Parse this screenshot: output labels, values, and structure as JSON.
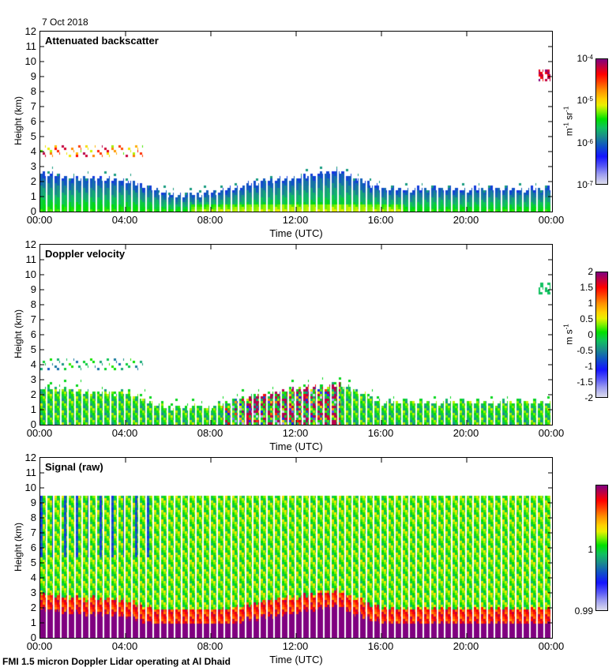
{
  "date_label": "7 Oct 2018",
  "footer": "FMI 1.5 micron Doppler Lidar operating at Al Dhaid",
  "colors": {
    "frame": "#000000",
    "background": "#ffffff"
  },
  "chart_data": [
    {
      "type": "heatmap",
      "title": "Attenuated backscatter",
      "xlabel": "Time (UTC)",
      "ylabel": "Height (km)",
      "xticks": [
        "00:00",
        "04:00",
        "08:00",
        "12:00",
        "16:00",
        "20:00",
        "00:00"
      ],
      "yticks": [
        "0",
        "1",
        "2",
        "3",
        "4",
        "5",
        "6",
        "7",
        "8",
        "9",
        "10",
        "11",
        "12"
      ],
      "ylim": [
        0,
        12
      ],
      "xlim_hours": [
        0,
        24
      ],
      "colorbar": {
        "label_base": "m",
        "label_exp1": "-1",
        "label_mid": " sr",
        "label_exp2": "-1",
        "ticks": [
          {
            "base": "10",
            "exp": "-4"
          },
          {
            "base": "10",
            "exp": "-5"
          },
          {
            "base": "10",
            "exp": "-6"
          },
          {
            "base": "10",
            "exp": "-7"
          }
        ],
        "scale": "log",
        "range": [
          1e-07,
          0.0001
        ]
      },
      "features": {
        "boundary_layer_top_km": [
          2.6,
          2.3,
          2.2,
          1.2,
          1.3,
          2.0,
          2.4,
          2.8,
          1.6,
          1.6,
          1.6,
          1.6,
          1.6
        ],
        "elevated_layer_km": 4.2,
        "high_cloud_km": 9.2
      }
    },
    {
      "type": "heatmap",
      "title": "Doppler velocity",
      "xlabel": "Time (UTC)",
      "ylabel": "Height (km)",
      "xticks": [
        "00:00",
        "04:00",
        "08:00",
        "12:00",
        "16:00",
        "20:00",
        "00:00"
      ],
      "yticks": [
        "0",
        "1",
        "2",
        "3",
        "4",
        "5",
        "6",
        "7",
        "8",
        "9",
        "10",
        "11",
        "12"
      ],
      "ylim": [
        0,
        12
      ],
      "xlim_hours": [
        0,
        24
      ],
      "colorbar": {
        "label_base": "m s",
        "label_exp1": "-1",
        "ticks": [
          "2",
          "1.5",
          "1",
          "0.5",
          "0",
          "-0.5",
          "-1",
          "-1.5",
          "-2"
        ],
        "range": [
          -2,
          2
        ]
      }
    },
    {
      "type": "heatmap",
      "title": "Signal (raw)",
      "xlabel": "Time (UTC)",
      "ylabel": "Height (km)",
      "xticks": [
        "00:00",
        "04:00",
        "08:00",
        "12:00",
        "16:00",
        "20:00",
        "00:00"
      ],
      "yticks": [
        "0",
        "1",
        "2",
        "3",
        "4",
        "5",
        "6",
        "7",
        "8",
        "9",
        "10",
        "11",
        "12"
      ],
      "ylim": [
        0,
        12
      ],
      "xlim_hours": [
        0,
        24
      ],
      "data_top_km": 9.6,
      "colorbar": {
        "ticks": [
          "1",
          "0.99"
        ],
        "range": [
          0.99,
          1.01
        ]
      }
    }
  ]
}
